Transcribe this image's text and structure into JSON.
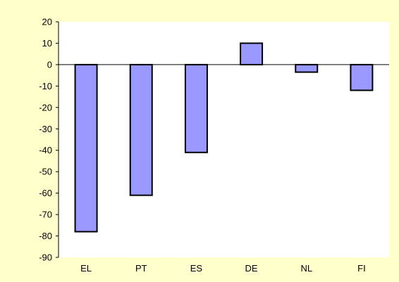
{
  "chart_data": {
    "type": "bar",
    "categories": [
      "EL",
      "PT",
      "ES",
      "DE",
      "NL",
      "FI"
    ],
    "values": [
      -78,
      -61,
      -41,
      10,
      -3.5,
      -12
    ],
    "ylim": [
      -90,
      20
    ],
    "yticks": [
      20,
      10,
      0,
      -10,
      -20,
      -30,
      -40,
      -50,
      -60,
      -70,
      -80,
      -90
    ],
    "title": "",
    "xlabel": "",
    "ylabel": "",
    "grid": false,
    "legend": "none",
    "colors": {
      "background": "#ffffcc",
      "bar_fill": "#9999ff",
      "bar_stroke": "#000000",
      "axis": "#000000"
    }
  }
}
